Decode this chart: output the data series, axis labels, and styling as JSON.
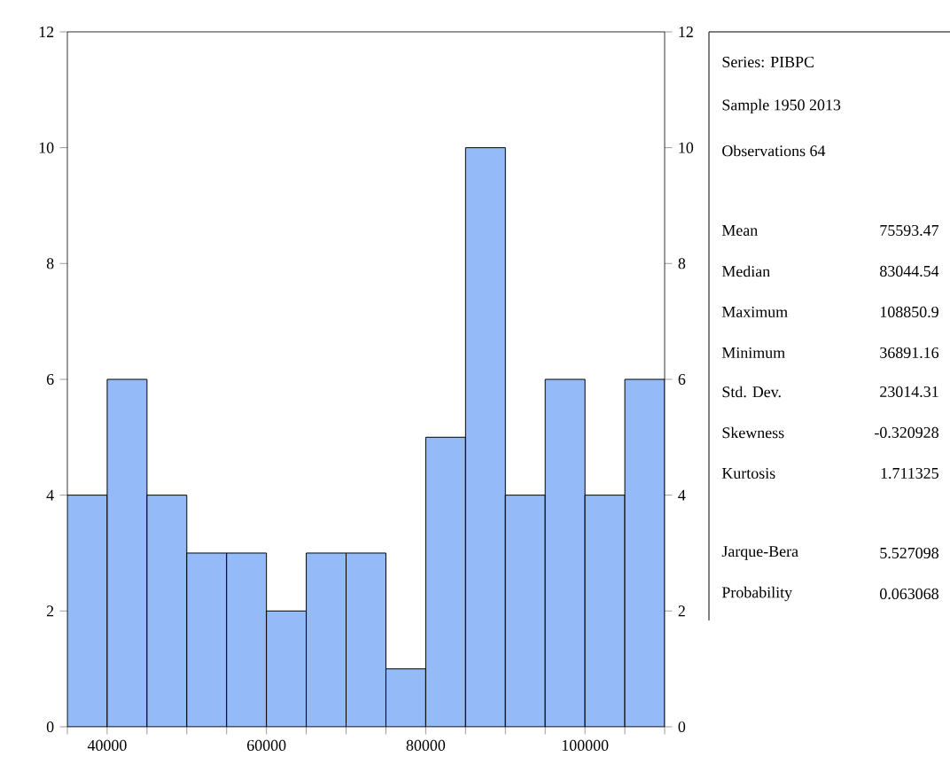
{
  "chart_data": {
    "type": "histogram",
    "color": "#94bbf8",
    "bins": [
      35000,
      40000,
      45000,
      50000,
      55000,
      60000,
      65000,
      70000,
      75000,
      80000,
      85000,
      90000,
      95000,
      100000,
      105000,
      110000
    ],
    "values": [
      4,
      6,
      4,
      3,
      3,
      2,
      3,
      3,
      1,
      5,
      10,
      4,
      6,
      4,
      6
    ],
    "xlim": [
      35000,
      110000
    ],
    "xticks": [
      {
        "value": 35000,
        "label": null
      },
      40000,
      {
        "value": 45000,
        "label": null
      },
      {
        "value": 50000,
        "label": null
      },
      {
        "value": 55000,
        "label": null
      },
      60000,
      {
        "value": 65000,
        "label": null
      },
      {
        "value": 70000,
        "label": null
      },
      {
        "value": 75000,
        "label": null
      },
      80000,
      {
        "value": 85000,
        "label": null
      },
      {
        "value": 90000,
        "label": null
      },
      {
        "value": 95000,
        "label": null
      },
      100000,
      {
        "value": 105000,
        "label": null
      },
      {
        "value": 110000,
        "label": null
      }
    ],
    "ylim": [
      0,
      12
    ],
    "yticks": [
      0,
      2,
      4,
      6,
      8,
      10,
      12
    ],
    "y2lim": [
      0,
      12
    ],
    "y2ticks": [
      0,
      2,
      4,
      6,
      8,
      10,
      12
    ],
    "grid": false,
    "annotations": [
      "Series: PIBPC",
      "Sample 1950 2013",
      "Observations 64",
      "Mean",
      "75593.47",
      "Median",
      "83044.54",
      "Maximum",
      "108850.9",
      "Minimum",
      "36891.16",
      "Std. Dev.",
      "23014.31",
      "Skewness",
      "-0.320928",
      "Kurtosis",
      "1.711325",
      "Jarque-Bera",
      "5.527098",
      "Probability",
      "0.063068"
    ]
  }
}
